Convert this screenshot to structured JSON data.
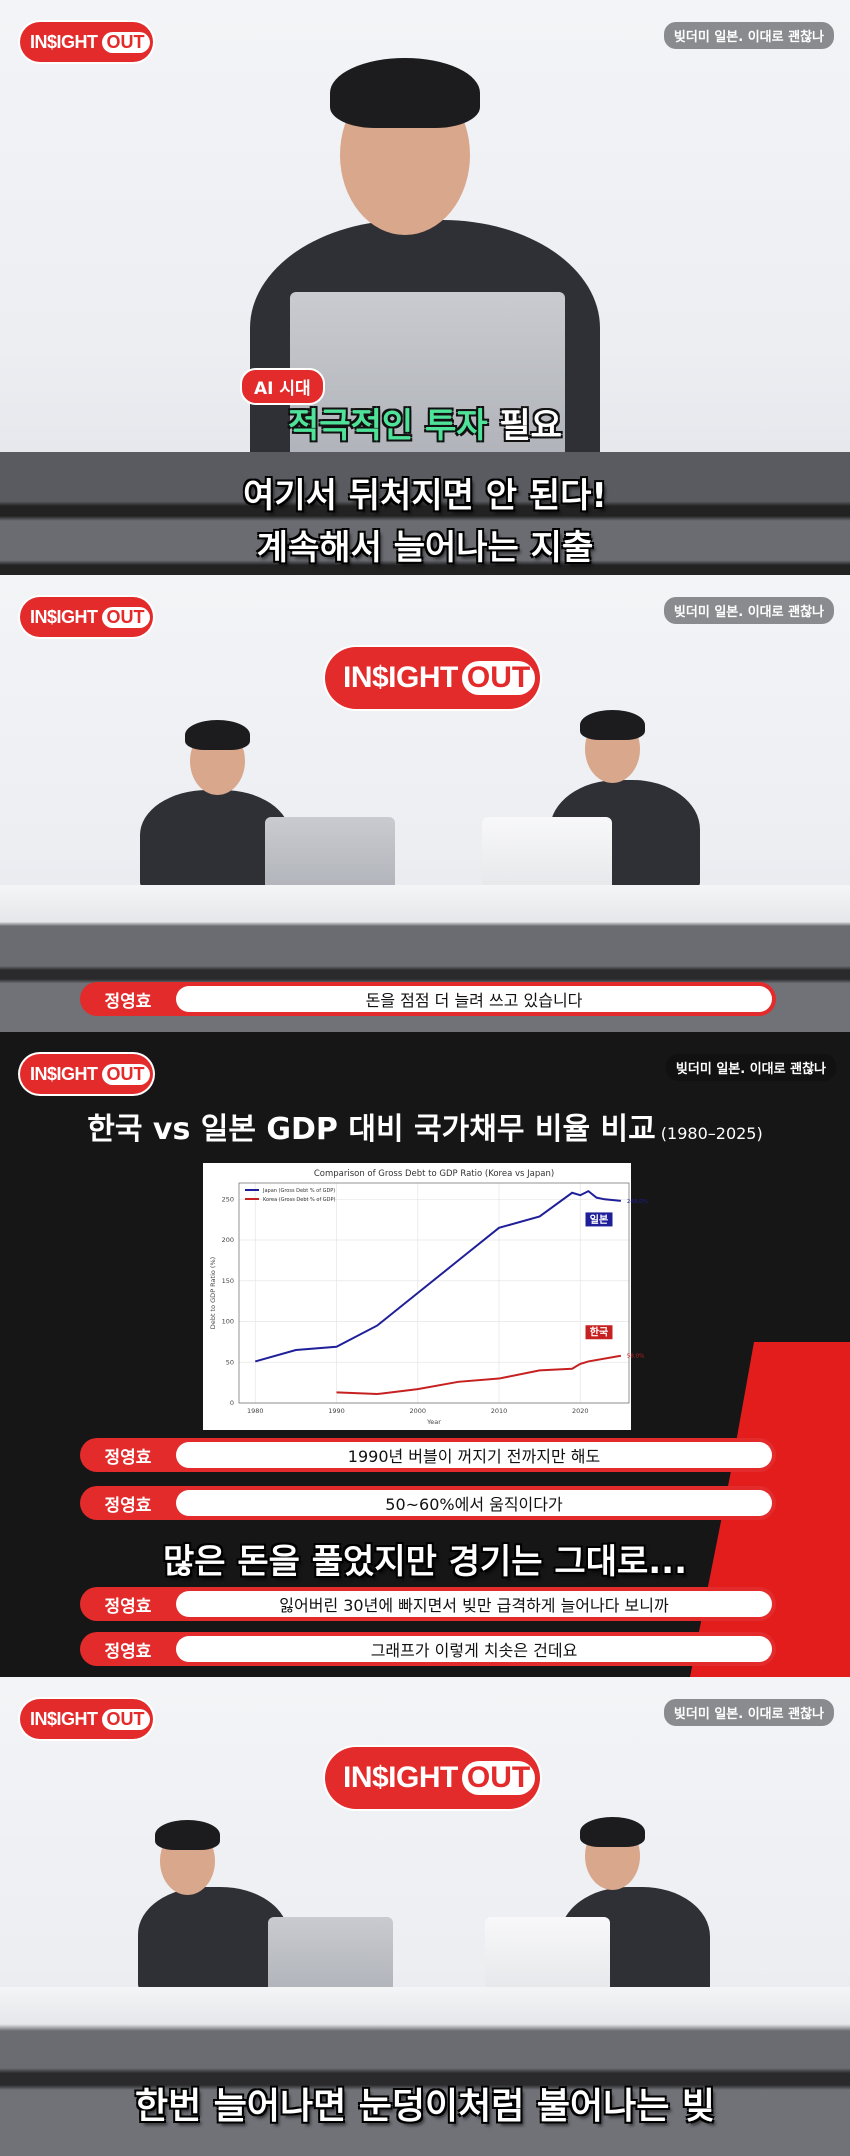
{
  "brand": {
    "logo_left": "IN$IGHT",
    "logo_right": "OUT",
    "accent": "#e32b2b"
  },
  "episode_badge": "빚더미 일본. 이대로 괜찮나",
  "frame1": {
    "tag": "AI 시대",
    "headline_green": "적극적인 투자",
    "headline_white": "필요",
    "subtitle_line1": "여기서 뒤처지면 안 된다!",
    "subtitle_line2": "계속해서 늘어나는 지출"
  },
  "frame2": {
    "speaker": "정영효",
    "caption": "돈을 점점 더 늘려 쓰고 있습니다"
  },
  "frame3": {
    "title": "한국 vs 일본 GDP 대비 국가채무 비율 비교",
    "title_range": "(1980–2025)",
    "captions": [
      {
        "speaker": "정영효",
        "text": "1990년 버블이 꺼지기 전까지만 해도"
      },
      {
        "speaker": "정영효",
        "text": "50~60%에서 움직이다가"
      },
      {
        "speaker": "정영효",
        "text": "잃어버린 30년에 빠지면서 빚만 급격하게 늘어나다 보니까"
      },
      {
        "speaker": "정영효",
        "text": "그래프가 이렇게 치솟은 건데요"
      }
    ],
    "big_subtitle": "많은 돈을 풀었지만 경기는 그대로..."
  },
  "frame4": {
    "subtitle": "한번 늘어나면 눈덩이처럼 불어나는 빚"
  },
  "chart_data": {
    "type": "line",
    "title": "Comparison of Gross Debt to GDP Ratio (Korea vs Japan)",
    "xlabel": "Year",
    "ylabel": "Debt to GDP Ratio (%)",
    "xlim": [
      1978,
      2026
    ],
    "ylim": [
      0,
      270
    ],
    "xticks": [
      1980,
      1990,
      2000,
      2010,
      2020
    ],
    "yticks": [
      0,
      50,
      100,
      150,
      200,
      250
    ],
    "grid": true,
    "legend": "top-left",
    "series": [
      {
        "name": "Japan (Gross Debt % of GDP)",
        "color": "#1f1f9a",
        "tag": "일본",
        "end_label": "248.0%",
        "x": [
          1980,
          1985,
          1990,
          1995,
          2000,
          2005,
          2010,
          2015,
          2019,
          2020,
          2021,
          2022,
          2023,
          2025
        ],
        "y": [
          51,
          65,
          69,
          95,
          135,
          175,
          215,
          229,
          258,
          255,
          260,
          252,
          250,
          248
        ]
      },
      {
        "name": "Korea (Gross Debt % of GDP)",
        "color": "#c62020",
        "tag": "한국",
        "end_label": "58.0%",
        "x": [
          1990,
          1995,
          2000,
          2005,
          2010,
          2015,
          2019,
          2020,
          2021,
          2025
        ],
        "y": [
          13,
          11,
          17,
          26,
          30,
          40,
          42,
          48,
          51,
          58
        ]
      }
    ]
  }
}
